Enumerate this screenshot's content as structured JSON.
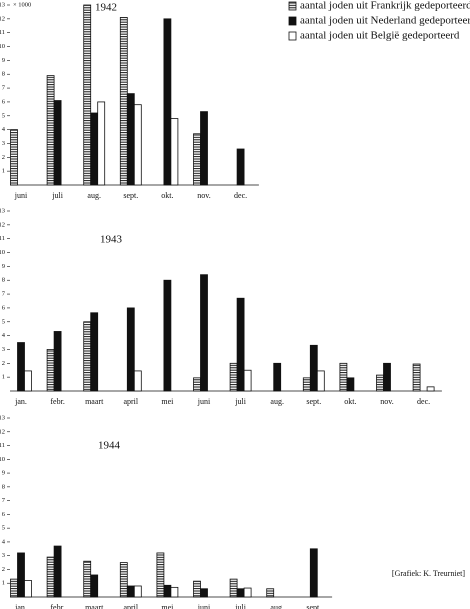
{
  "chart_data": {
    "type": "bar",
    "y_unit": "× 1000",
    "legend": "top-right",
    "ylim": [
      0,
      13
    ],
    "yticks": [
      1,
      2,
      3,
      4,
      5,
      6,
      7,
      8,
      9,
      10,
      11,
      12,
      13
    ],
    "series": [
      {
        "name": "aantal joden uit Frankrijk gedeporteerd",
        "color": "#ffffff",
        "pattern": "horizontal-lines"
      },
      {
        "name": "aantal joden uit Nederland gedeporteerd",
        "color": "#111111",
        "pattern": "solid"
      },
      {
        "name": "aantal joden uit België gedeporteerd",
        "color": "#ffffff",
        "pattern": "solid"
      }
    ],
    "panels": [
      {
        "title": "1942",
        "categories": [
          "juni",
          "juli",
          "aug.",
          "sept.",
          "okt.",
          "nov.",
          "dec."
        ],
        "series": [
          {
            "values": [
              4,
              7.9,
              13,
              12.1,
              0,
              3.7,
              0
            ]
          },
          {
            "values": [
              0,
              6.1,
              5.2,
              6.6,
              12,
              5.3,
              2.6
            ]
          },
          {
            "values": [
              0,
              0,
              6,
              5.8,
              4.8,
              0,
              0
            ]
          }
        ]
      },
      {
        "title": "1943",
        "categories": [
          "jan.",
          "febr.",
          "maart",
          "april",
          "mei",
          "juni",
          "juli",
          "aug.",
          "sept.",
          "okt.",
          "nov.",
          "dec."
        ],
        "series": [
          {
            "values": [
              0,
              3,
              5,
              0,
              0,
              0.95,
              2,
              0,
              0.95,
              2,
              1.15,
              1.95
            ]
          },
          {
            "values": [
              3.5,
              4.3,
              5.65,
              6,
              8,
              8.4,
              6.7,
              2,
              3.3,
              0.95,
              2,
              0
            ]
          },
          {
            "values": [
              1.45,
              0,
              0,
              1.45,
              0,
              0,
              1.5,
              0,
              1.45,
              0,
              0,
              0.3
            ]
          }
        ]
      },
      {
        "title": "1944",
        "categories": [
          "jan.",
          "febr.",
          "maart",
          "april",
          "mei",
          "juni",
          "juli",
          "aug.",
          "sept."
        ],
        "series": [
          {
            "values": [
              1.3,
              2.9,
              2.6,
              2.5,
              3.2,
              1.15,
              1.3,
              0.6,
              0
            ]
          },
          {
            "values": [
              3.2,
              3.7,
              1.6,
              0.8,
              0.85,
              0.6,
              0.6,
              0,
              3.5
            ]
          },
          {
            "values": [
              1.2,
              0,
              0,
              0.8,
              0.7,
              0,
              0.65,
              0,
              0
            ]
          }
        ]
      }
    ],
    "credit": "[Grafiek: K. Treurniet]"
  }
}
